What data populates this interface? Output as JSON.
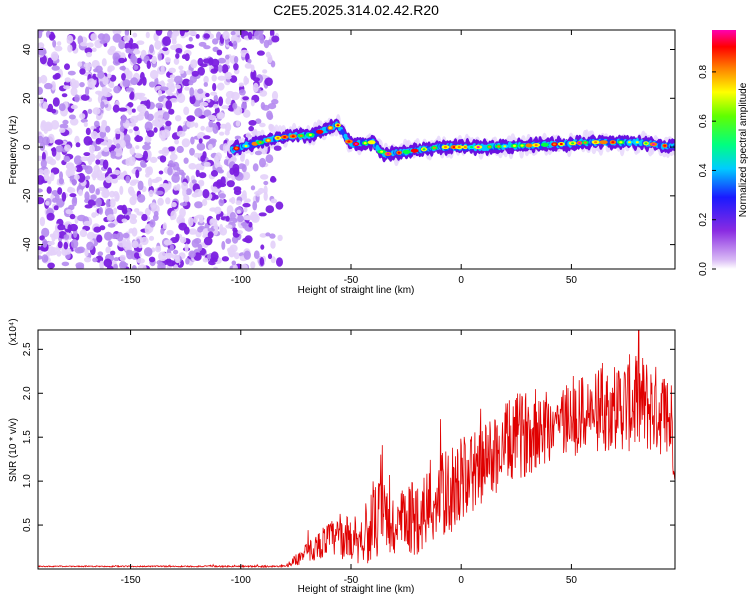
{
  "title": "C2E5.2025.314.02.42.R20",
  "chart_data": [
    {
      "type": "heatmap",
      "xlabel": "Height of straight line (km)",
      "ylabel": "Frequency (Hz)",
      "xlim": [
        -192,
        97
      ],
      "ylim": [
        -50,
        48
      ],
      "xticks": [
        -150,
        -100,
        -50,
        0,
        50
      ],
      "yticks": [
        -40,
        -20,
        0,
        20,
        40
      ],
      "colorbar": {
        "label": "Normalized spectral amplitude",
        "range": [
          0.0,
          0.97
        ],
        "ticks": [
          0.0,
          0.2,
          0.4,
          0.6,
          0.8
        ],
        "colormap": [
          "#ffffff",
          "#e0c8f8",
          "#8a2be2",
          "#1a1aff",
          "#00e5ff",
          "#00ff40",
          "#ffff00",
          "#ff8000",
          "#ff0000",
          "#ff00c0"
        ]
      },
      "noise_region_x": [
        -192,
        -82
      ],
      "ridge_start_x": -104,
      "ridge": [
        {
          "x": -104,
          "y": -1
        },
        {
          "x": -82,
          "y": 4
        },
        {
          "x": -68,
          "y": 5
        },
        {
          "x": -56,
          "y": 9
        },
        {
          "x": -50,
          "y": 1
        },
        {
          "x": -40,
          "y": 2
        },
        {
          "x": -35,
          "y": -3
        },
        {
          "x": -25,
          "y": -2
        },
        {
          "x": -10,
          "y": 0
        },
        {
          "x": 10,
          "y": 0
        },
        {
          "x": 40,
          "y": 1
        },
        {
          "x": 60,
          "y": 2
        },
        {
          "x": 80,
          "y": 2
        },
        {
          "x": 97,
          "y": 0
        }
      ]
    },
    {
      "type": "line",
      "xlabel": "Height of straight line (km)",
      "ylabel": "SNR (10 * v/v)",
      "y_multiplier": "(x10⁴)",
      "xlim": [
        -192,
        97
      ],
      "ylim": [
        0,
        2.72
      ],
      "xticks": [
        -150,
        -100,
        -50,
        0,
        50
      ],
      "yticks": [
        0.5,
        1.0,
        1.5,
        2.0,
        2.5
      ],
      "yticklabels": [
        "0.5",
        "1.0",
        "1.5",
        "2.0",
        "2.5"
      ],
      "series": [
        {
          "color": "#e00000",
          "envelope": [
            {
              "x": -192,
              "mean": 0.03,
              "amp": 0.005
            },
            {
              "x": -80,
              "mean": 0.03,
              "amp": 0.01
            },
            {
              "x": -72,
              "mean": 0.15,
              "amp": 0.1
            },
            {
              "x": -60,
              "mean": 0.35,
              "amp": 0.2
            },
            {
              "x": -45,
              "mean": 0.35,
              "amp": 0.3
            },
            {
              "x": -36,
              "mean": 0.6,
              "amp": 0.5
            },
            {
              "x": -30,
              "mean": 0.45,
              "amp": 0.4
            },
            {
              "x": -20,
              "mean": 0.6,
              "amp": 0.45
            },
            {
              "x": -10,
              "mean": 0.8,
              "amp": 0.5
            },
            {
              "x": 0,
              "mean": 1.0,
              "amp": 0.5
            },
            {
              "x": 10,
              "mean": 1.2,
              "amp": 0.45
            },
            {
              "x": 25,
              "mean": 1.5,
              "amp": 0.5
            },
            {
              "x": 40,
              "mean": 1.65,
              "amp": 0.45
            },
            {
              "x": 55,
              "mean": 1.75,
              "amp": 0.45
            },
            {
              "x": 70,
              "mean": 1.85,
              "amp": 0.5
            },
            {
              "x": 80,
              "mean": 1.9,
              "amp": 0.6
            },
            {
              "x": 90,
              "mean": 1.8,
              "amp": 0.5
            },
            {
              "x": 97,
              "mean": 1.6,
              "amp": 0.6
            }
          ]
        }
      ]
    }
  ]
}
